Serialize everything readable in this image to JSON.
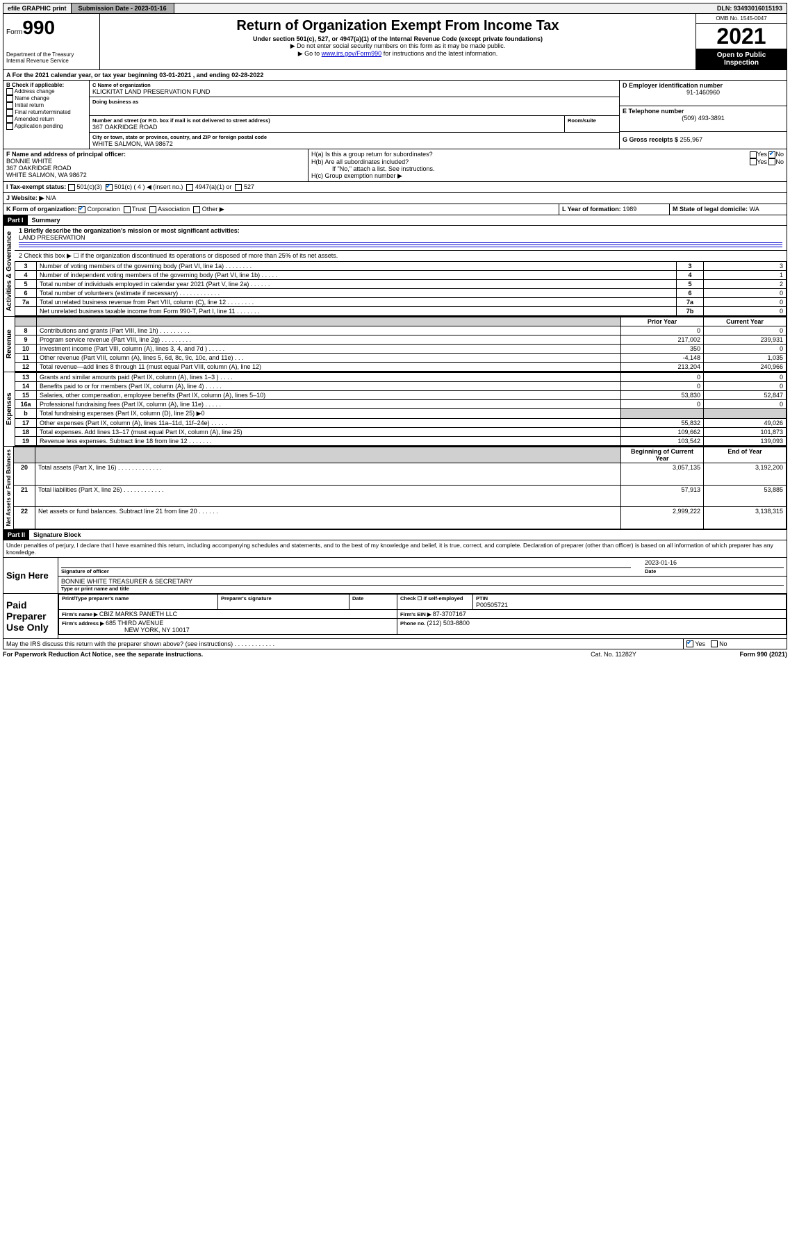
{
  "topbar": {
    "efile": "efile GRAPHIC print",
    "submission_label": "Submission Date - ",
    "submission_date": "2023-01-16",
    "dln_label": "DLN: ",
    "dln": "93493016015193"
  },
  "header": {
    "form_prefix": "Form",
    "form_number": "990",
    "dept": "Department of the Treasury",
    "irs": "Internal Revenue Service",
    "title": "Return of Organization Exempt From Income Tax",
    "subtitle": "Under section 501(c), 527, or 4947(a)(1) of the Internal Revenue Code (except private foundations)",
    "note1": "▶ Do not enter social security numbers on this form as it may be made public.",
    "note2_pre": "▶ Go to ",
    "note2_link": "www.irs.gov/Form990",
    "note2_post": " for instructions and the latest information.",
    "omb": "OMB No. 1545-0047",
    "year": "2021",
    "inspect1": "Open to Public",
    "inspect2": "Inspection"
  },
  "lineA": "A For the 2021 calendar year, or tax year beginning 03-01-2021  , and ending 02-28-2022",
  "sectionB": {
    "label": "B Check if applicable:",
    "items": [
      "Address change",
      "Name change",
      "Initial return",
      "Final return/terminated",
      "Amended return",
      "Application pending"
    ]
  },
  "sectionC": {
    "name_label": "C Name of organization",
    "name": "KLICKITAT LAND PRESERVATION FUND",
    "dba_label": "Doing business as",
    "dba": "",
    "addr_label": "Number and street (or P.O. box if mail is not delivered to street address)",
    "room_label": "Room/suite",
    "addr": "367 OAKRIDGE ROAD",
    "city_label": "City or town, state or province, country, and ZIP or foreign postal code",
    "city": "WHITE SALMON, WA  98672"
  },
  "sectionD": {
    "label": "D Employer identification number",
    "value": "91-1460960"
  },
  "sectionE": {
    "label": "E Telephone number",
    "value": "(509) 493-3891"
  },
  "sectionG": {
    "label": "G Gross receipts $ ",
    "value": "255,967"
  },
  "sectionF": {
    "label": "F Name and address of principal officer:",
    "name": "BONNIE WHITE",
    "addr1": "367 OAKRIDGE ROAD",
    "addr2": "WHITE SALMON, WA  98672"
  },
  "sectionH": {
    "ha": "H(a)  Is this a group return for subordinates?",
    "hb": "H(b)  Are all subordinates included?",
    "hb_note": "If \"No,\" attach a list. See instructions.",
    "hc": "H(c)  Group exemption number ▶",
    "yes": "Yes",
    "no": "No"
  },
  "sectionI": {
    "label": "I   Tax-exempt status:",
    "o1": "501(c)(3)",
    "o2": "501(c) ( 4 ) ◀ (insert no.)",
    "o3": "4947(a)(1) or",
    "o4": "527"
  },
  "sectionJ": {
    "label": "J   Website: ▶",
    "value": "N/A"
  },
  "sectionK": {
    "label": "K Form of organization:",
    "o1": "Corporation",
    "o2": "Trust",
    "o3": "Association",
    "o4": "Other ▶"
  },
  "sectionL": {
    "label": "L Year of formation: ",
    "value": "1989"
  },
  "sectionM": {
    "label": "M State of legal domicile: ",
    "value": "WA"
  },
  "part1": {
    "header": "Part I",
    "title": "Summary",
    "q1_label": "1  Briefly describe the organization's mission or most significant activities:",
    "q1_value": "LAND PRESERVATION",
    "q2": "2   Check this box ▶ ☐  if the organization discontinued its operations or disposed of more than 25% of its net assets.",
    "side_gov": "Activities & Governance",
    "side_rev": "Revenue",
    "side_exp": "Expenses",
    "side_net": "Net Assets or Fund Balances",
    "col_prior": "Prior Year",
    "col_current": "Current Year",
    "col_beg": "Beginning of Current Year",
    "col_end": "End of Year",
    "gov_rows": [
      {
        "n": "3",
        "t": "Number of voting members of the governing body (Part VI, line 1a)   .    .    .    .    .    .    .    .",
        "box": "3",
        "v": "3"
      },
      {
        "n": "4",
        "t": "Number of independent voting members of the governing body (Part VI, line 1b)   .    .    .    .    .",
        "box": "4",
        "v": "1"
      },
      {
        "n": "5",
        "t": "Total number of individuals employed in calendar year 2021 (Part V, line 2a)   .    .    .    .    .    .",
        "box": "5",
        "v": "2"
      },
      {
        "n": "6",
        "t": "Total number of volunteers (estimate if necessary)   .    .    .    .    .    .    .    .    .    .    .    .",
        "box": "6",
        "v": "0"
      },
      {
        "n": "7a",
        "t": "Total unrelated business revenue from Part VIII, column (C), line 12   .    .    .    .    .    .    .    .",
        "box": "7a",
        "v": "0"
      },
      {
        "n": "",
        "t": "Net unrelated business taxable income from Form 990-T, Part I, line 11   .    .    .    .    .    .    .",
        "box": "7b",
        "v": "0"
      }
    ],
    "rev_rows": [
      {
        "n": "8",
        "t": "Contributions and grants (Part VIII, line 1h)   .    .    .    .    .    .    .    .    .",
        "p": "0",
        "c": "0"
      },
      {
        "n": "9",
        "t": "Program service revenue (Part VIII, line 2g)   .    .    .    .    .    .    .    .    .",
        "p": "217,002",
        "c": "239,931"
      },
      {
        "n": "10",
        "t": "Investment income (Part VIII, column (A), lines 3, 4, and 7d )   .    .    .    .    .",
        "p": "350",
        "c": "0"
      },
      {
        "n": "11",
        "t": "Other revenue (Part VIII, column (A), lines 5, 6d, 8c, 9c, 10c, and 11e)   .    .    .",
        "p": "-4,148",
        "c": "1,035"
      },
      {
        "n": "12",
        "t": "Total revenue—add lines 8 through 11 (must equal Part VIII, column (A), line 12)",
        "p": "213,204",
        "c": "240,966"
      }
    ],
    "exp_rows": [
      {
        "n": "13",
        "t": "Grants and similar amounts paid (Part IX, column (A), lines 1–3 )   .    .    .    .",
        "p": "0",
        "c": "0"
      },
      {
        "n": "14",
        "t": "Benefits paid to or for members (Part IX, column (A), line 4)   .    .    .    .    .",
        "p": "0",
        "c": "0"
      },
      {
        "n": "15",
        "t": "Salaries, other compensation, employee benefits (Part IX, column (A), lines 5–10)",
        "p": "53,830",
        "c": "52,847"
      },
      {
        "n": "16a",
        "t": "Professional fundraising fees (Part IX, column (A), line 11e)   .    .    .    .    .",
        "p": "0",
        "c": "0"
      },
      {
        "n": "b",
        "t": "Total fundraising expenses (Part IX, column (D), line 25) ▶0",
        "p": "",
        "c": "",
        "shade": true
      },
      {
        "n": "17",
        "t": "Other expenses (Part IX, column (A), lines 11a–11d, 11f–24e)   .    .    .    .    .",
        "p": "55,832",
        "c": "49,026"
      },
      {
        "n": "18",
        "t": "Total expenses. Add lines 13–17 (must equal Part IX, column (A), line 25)",
        "p": "109,662",
        "c": "101,873"
      },
      {
        "n": "19",
        "t": "Revenue less expenses. Subtract line 18 from line 12   .    .    .    .    .    .    .",
        "p": "103,542",
        "c": "139,093"
      }
    ],
    "net_rows": [
      {
        "n": "20",
        "t": "Total assets (Part X, line 16)   .    .    .    .    .    .    .    .    .    .    .    .    .",
        "p": "3,057,135",
        "c": "3,192,200"
      },
      {
        "n": "21",
        "t": "Total liabilities (Part X, line 26)   .    .    .    .    .    .    .    .    .    .    .    .",
        "p": "57,913",
        "c": "53,885"
      },
      {
        "n": "22",
        "t": "Net assets or fund balances. Subtract line 21 from line 20   .    .    .    .    .    .",
        "p": "2,999,222",
        "c": "3,138,315"
      }
    ]
  },
  "part2": {
    "header": "Part II",
    "title": "Signature Block",
    "decl": "Under penalties of perjury, I declare that I have examined this return, including accompanying schedules and statements, and to the best of my knowledge and belief, it is true, correct, and complete. Declaration of preparer (other than officer) is based on all information of which preparer has any knowledge.",
    "sign_here": "Sign Here",
    "sig_officer": "Signature of officer",
    "sig_date": "Date",
    "sig_date_val": "2023-01-16",
    "officer_name": "BONNIE WHITE  TREASURER & SECRETARY",
    "type_name": "Type or print name and title",
    "paid": "Paid Preparer Use Only",
    "prep_name_h": "Print/Type preparer's name",
    "prep_sig_h": "Preparer's signature",
    "date_h": "Date",
    "check_if": "Check ☐ if self-employed",
    "ptin_h": "PTIN",
    "ptin": "P00505721",
    "firm_name_l": "Firm's name    ▶ ",
    "firm_name": "CBIZ MARKS PANETH LLC",
    "firm_ein_l": "Firm's EIN ▶ ",
    "firm_ein": "87-3707167",
    "firm_addr_l": "Firm's address ▶ ",
    "firm_addr1": "685 THIRD AVENUE",
    "firm_addr2": "NEW YORK, NY  10017",
    "phone_l": "Phone no. ",
    "phone": "(212) 503-8800",
    "may_irs": "May the IRS discuss this return with the preparer shown above? (see instructions)   .    .    .    .    .    .    .    .    .    .    .    .",
    "yes": "Yes",
    "no": "No"
  },
  "footer": {
    "left": "For Paperwork Reduction Act Notice, see the separate instructions.",
    "mid": "Cat. No. 11282Y",
    "right": "Form 990 (2021)"
  }
}
